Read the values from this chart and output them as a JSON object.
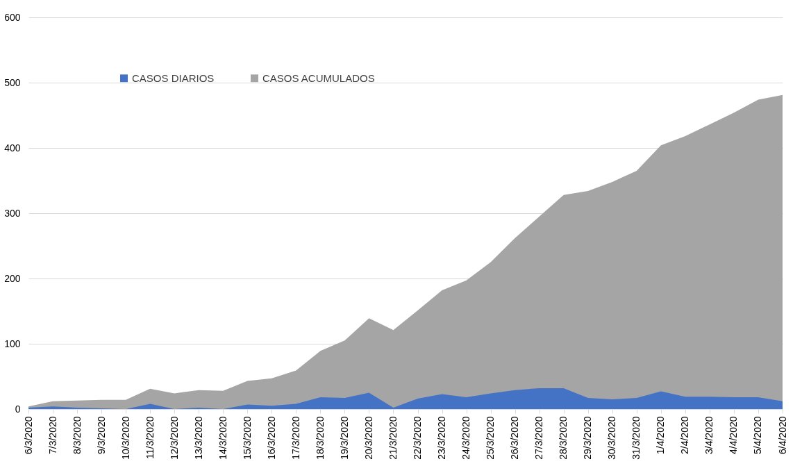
{
  "chart_data": {
    "type": "area",
    "categories": [
      "6/3/2020",
      "7/3/2020",
      "8/3/2020",
      "9/3/2020",
      "10/3/2020",
      "11/3/2020",
      "12/3/2020",
      "13/3/2020",
      "14/3/2020",
      "15/3/2020",
      "16/3/2020",
      "17/3/2020",
      "18/3/2020",
      "19/3/2020",
      "20/3/2020",
      "21/3/2020",
      "22/3/2020",
      "23/3/2020",
      "24/3/2020",
      "25/3/2020",
      "26/3/2020",
      "27/3/2020",
      "28/3/2020",
      "29/3/2020",
      "30/3/2020",
      "31/3/2020",
      "1/4/2020",
      "2/4/2020",
      "3/4/2020",
      "4/4/2020",
      "5/4/2020",
      "6/4/2020"
    ],
    "series": [
      {
        "name": "CASOS DIARIOS",
        "color": "#4472c4",
        "values": [
          2,
          4,
          2,
          1,
          0,
          8,
          0,
          2,
          0,
          7,
          5,
          8,
          18,
          17,
          25,
          2,
          16,
          23,
          18,
          24,
          29,
          32,
          32,
          17,
          15,
          17,
          27,
          19,
          19,
          18,
          18,
          12
        ]
      },
      {
        "name": "CASOS ACUMULADOS",
        "color": "#a5a5a5",
        "values": [
          4,
          12,
          13,
          14,
          14,
          31,
          24,
          29,
          28,
          43,
          47,
          59,
          89,
          105,
          139,
          121,
          151,
          182,
          197,
          225,
          262,
          295,
          328,
          334,
          348,
          365,
          404,
          418,
          436,
          454,
          474,
          481
        ]
      }
    ],
    "ylim": [
      0,
      600
    ],
    "yticks": [
      0,
      100,
      200,
      300,
      400,
      500,
      600
    ],
    "grid": "y",
    "legend": "top"
  }
}
